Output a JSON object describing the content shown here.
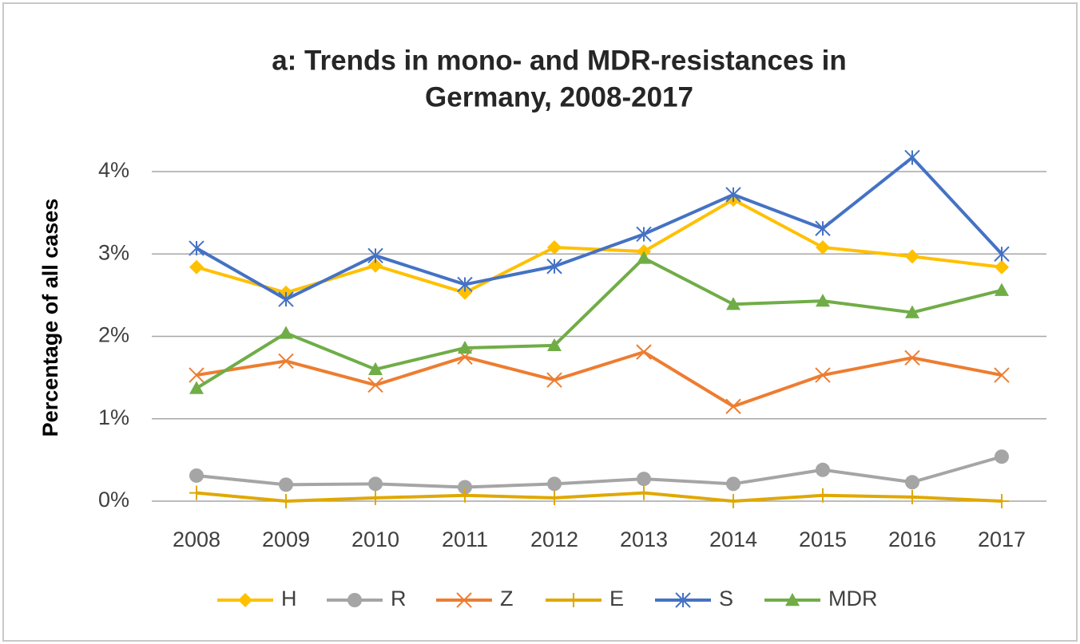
{
  "chart_data": {
    "type": "line",
    "title": [
      "a: Trends in mono- and MDR-resistances in",
      "Germany, 2008-2017"
    ],
    "y_label": "Percentage of all cases",
    "categories": [
      "2008",
      "2009",
      "2010",
      "2011",
      "2012",
      "2013",
      "2014",
      "2015",
      "2016",
      "2017"
    ],
    "series": [
      {
        "name": "H",
        "color": "#ffc000",
        "marker": "diamond",
        "values": [
          2.84,
          2.53,
          2.86,
          2.53,
          3.08,
          3.03,
          3.66,
          3.08,
          2.97,
          2.84
        ]
      },
      {
        "name": "R",
        "color": "#a5a5a5",
        "marker": "circle",
        "values": [
          0.31,
          0.2,
          0.21,
          0.17,
          0.21,
          0.27,
          0.21,
          0.38,
          0.23,
          0.54
        ]
      },
      {
        "name": "Z",
        "color": "#ed7d31",
        "marker": "x",
        "values": [
          1.53,
          1.7,
          1.41,
          1.75,
          1.47,
          1.81,
          1.15,
          1.53,
          1.74,
          1.53
        ]
      },
      {
        "name": "E",
        "color": "#e0a800",
        "marker": "plus",
        "values": [
          0.1,
          0,
          0.04,
          0.07,
          0.04,
          0.1,
          0,
          0.07,
          0.05,
          0
        ]
      },
      {
        "name": "S",
        "color": "#4472c4",
        "marker": "star",
        "values": [
          3.07,
          2.45,
          2.98,
          2.63,
          2.85,
          3.24,
          3.72,
          3.31,
          4.17,
          3.0
        ]
      },
      {
        "name": "MDR",
        "color": "#70ad47",
        "marker": "triangle",
        "values": [
          1.37,
          2.04,
          1.6,
          1.86,
          1.89,
          2.95,
          2.39,
          2.43,
          2.29,
          2.56
        ]
      }
    ],
    "ylim": [
      0,
      4
    ],
    "yticks": [
      {
        "value": 0,
        "label": "0%"
      },
      {
        "value": 1,
        "label": "1%"
      },
      {
        "value": 2,
        "label": "2%"
      },
      {
        "value": 3,
        "label": "3%"
      },
      {
        "value": 4,
        "label": "4%"
      }
    ],
    "grid": true,
    "legend": "bottom"
  }
}
